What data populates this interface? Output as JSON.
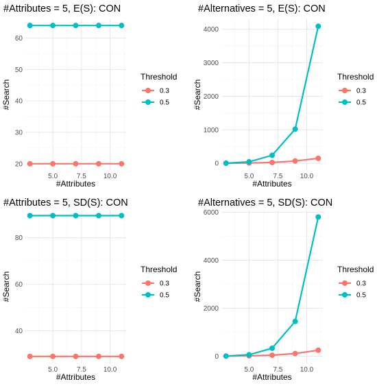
{
  "chart_data": [
    {
      "type": "line",
      "title": "#Attributes = 5, E(S): CON",
      "xlabel": "#Attributes",
      "ylabel": "#Search",
      "x": [
        3,
        5,
        7,
        9,
        11
      ],
      "xlim": [
        2.6,
        11.4
      ],
      "xticks": [
        5,
        7.5,
        10
      ],
      "xtick_labels": [
        "5.0",
        "7.5",
        "10.0"
      ],
      "ylim": [
        18,
        66
      ],
      "yticks": [
        20,
        30,
        40,
        50,
        60
      ],
      "ytick_labels": [
        "20",
        "30",
        "40",
        "50",
        "60"
      ],
      "legend_title": "Threshold",
      "legend_position": "right",
      "grid": true,
      "series": [
        {
          "name": "0.3",
          "color": "#F8766D",
          "values": [
            20,
            20,
            20,
            20,
            20
          ]
        },
        {
          "name": "0.5",
          "color": "#00BFC4",
          "values": [
            64,
            64,
            64,
            64,
            64
          ]
        }
      ]
    },
    {
      "type": "line",
      "title": "#Alternatives = 5, E(S): CON",
      "xlabel": "#Attributes",
      "ylabel": "#Search",
      "x": [
        3,
        5,
        7,
        9,
        11
      ],
      "xlim": [
        2.6,
        11.4
      ],
      "xticks": [
        5,
        7.5,
        10
      ],
      "xtick_labels": [
        "5.0",
        "7.5",
        "10.0"
      ],
      "ylim": [
        -200,
        4300
      ],
      "yticks": [
        0,
        1000,
        2000,
        3000,
        4000
      ],
      "ytick_labels": [
        "0",
        "1000",
        "2000",
        "3000",
        "4000"
      ],
      "legend_title": "Threshold",
      "legend_position": "right",
      "grid": true,
      "series": [
        {
          "name": "0.3",
          "color": "#F8766D",
          "values": [
            3,
            10,
            25,
            70,
            150
          ]
        },
        {
          "name": "0.5",
          "color": "#00BFC4",
          "values": [
            5,
            45,
            240,
            1020,
            4090
          ]
        }
      ]
    },
    {
      "type": "line",
      "title": "#Attributes = 5, SD(S): CON",
      "xlabel": "#Attributes",
      "ylabel": "#Search",
      "x": [
        3,
        5,
        7,
        9,
        11
      ],
      "xlim": [
        2.6,
        11.4
      ],
      "xticks": [
        5,
        7.5,
        10
      ],
      "xtick_labels": [
        "5.0",
        "7.5",
        "10.0"
      ],
      "ylim": [
        26,
        92
      ],
      "yticks": [
        40,
        60,
        80
      ],
      "ytick_labels": [
        "40",
        "60",
        "80"
      ],
      "legend_title": "Threshold",
      "legend_position": "right",
      "grid": true,
      "series": [
        {
          "name": "0.3",
          "color": "#F8766D",
          "values": [
            29,
            29,
            29,
            29,
            29
          ]
        },
        {
          "name": "0.5",
          "color": "#00BFC4",
          "values": [
            89.5,
            89.5,
            89.5,
            89.5,
            89.5
          ]
        }
      ]
    },
    {
      "type": "line",
      "title": "#Alternatives = 5, SD(S): CON",
      "xlabel": "#Attributes",
      "ylabel": "#Search",
      "x": [
        3,
        5,
        7,
        9,
        11
      ],
      "xlim": [
        2.6,
        11.4
      ],
      "xticks": [
        5,
        7.5,
        10
      ],
      "xtick_labels": [
        "5.0",
        "7.5",
        "10.0"
      ],
      "ylim": [
        -300,
        6100
      ],
      "yticks": [
        0,
        2000,
        4000,
        6000
      ],
      "ytick_labels": [
        "0",
        "2000",
        "4000",
        "6000"
      ],
      "legend_title": "Threshold",
      "legend_position": "right",
      "grid": true,
      "series": [
        {
          "name": "0.3",
          "color": "#F8766D",
          "values": [
            3,
            15,
            40,
            110,
            250
          ]
        },
        {
          "name": "0.5",
          "color": "#00BFC4",
          "values": [
            5,
            60,
            330,
            1450,
            5800
          ]
        }
      ]
    }
  ]
}
